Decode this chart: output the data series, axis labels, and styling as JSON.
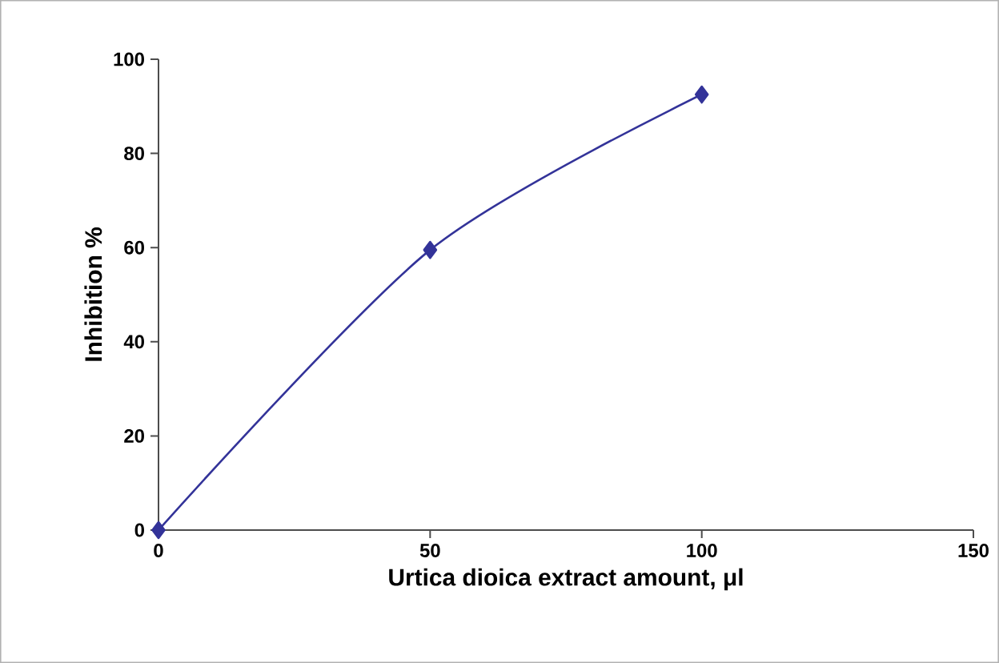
{
  "chart_data": {
    "type": "line",
    "xlabel": "Urtica dioica extract amount, μl",
    "ylabel": "Inhibition %",
    "x": [
      0,
      50,
      100
    ],
    "series": [
      {
        "color": "#333399",
        "values": [
          0,
          59.5,
          92.5
        ]
      }
    ],
    "xlim": [
      0,
      150
    ],
    "xticks": [
      0,
      50,
      100,
      150
    ],
    "ylim": [
      0,
      100
    ],
    "yticks": [
      0,
      20,
      40,
      60,
      80,
      100
    ],
    "marker": "diamond",
    "line_style": "solid"
  }
}
